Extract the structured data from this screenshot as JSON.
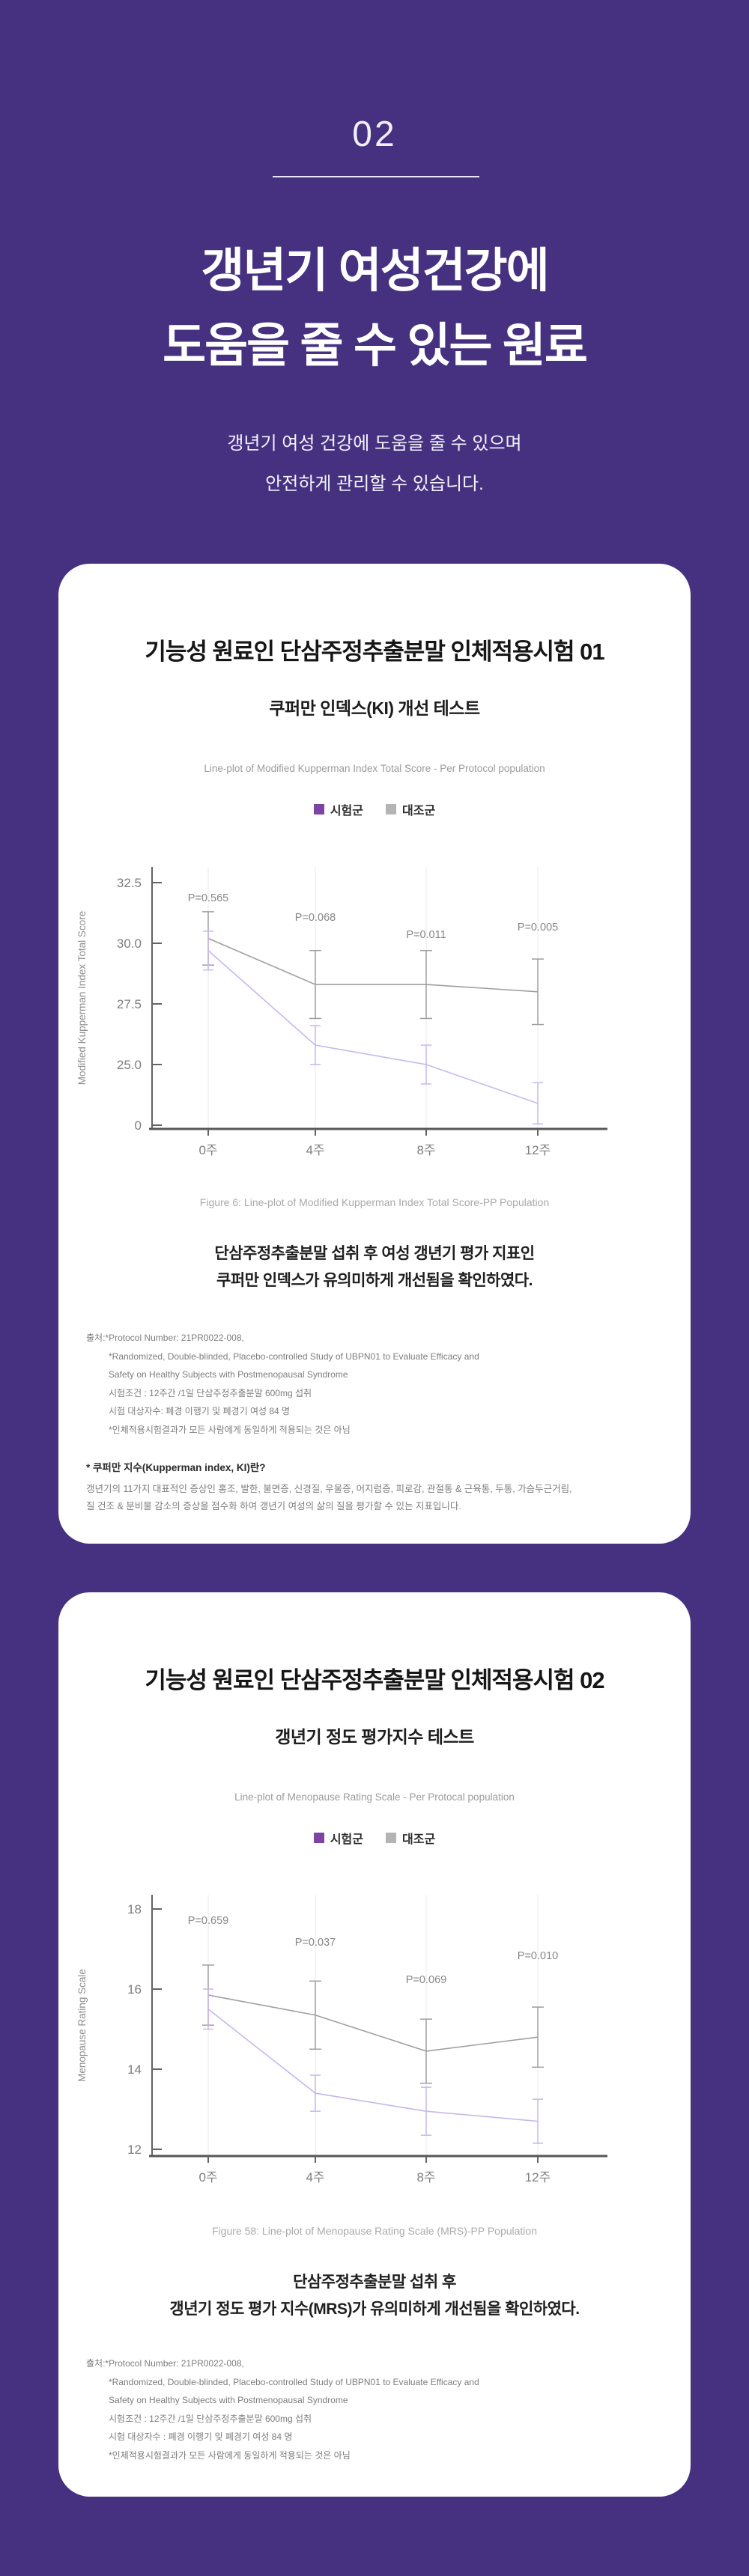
{
  "page": {
    "section_number": "02",
    "title_line1": "갱년기 여성건강에",
    "title_line2": "도움을 줄 수 있는 원료",
    "subtitle_line1": "갱년기 여성 건강에 도움을 줄 수 있으며",
    "subtitle_line2": "안전하게 관리할 수 있습니다.",
    "bg_color": "#463181"
  },
  "cards": [
    {
      "title": "기능성 원료인 단삼주정추출분말 인체적용시험 01",
      "subtitle": "쿠퍼만 인덱스(KI) 개선 테스트",
      "figure_caption": "Figure 6: Line-plot of Modified Kupperman Index Total Score-PP Population",
      "result_line1": "단삼주정추출분말 섭취 후 여성 갱년기 평가 지표인",
      "result_line2": "쿠퍼만 인덱스가 유의미하게 개선됨을 확인하였다.",
      "footnotes": [
        "출처:*Protocol Number: 21PR0022-008,",
        "*Randomized, Double-blinded, Placebo-controlled Study of UBPN01 to Evaluate Efficacy and",
        "Safety on Healthy Subjects with Postmenopausal Syndrome",
        "시험조건 : 12주간 /1일 단삼주정추출분말 600mg 섭취",
        "시험 대상자수: 폐경 이행기 및 폐경기 여성 84 명",
        "*인체적용시험결과가 모든 사람에게 동일하게 적용되는 것은 아님"
      ],
      "note_title": "* 쿠퍼만 지수(Kupperman index, KI)란?",
      "note_line1": "갱년기의 11가지 대표적인 증상인 홍조, 발한, 불면증, 신경질, 우울증, 어지럼증, 피로감, 관절통 & 근육통, 두통, 가슴두근거림,",
      "note_line2": "질 건조 & 분비물 감소의 증상을 점수화 하여 갱년기 여성의 삶의 질을 평가할 수 있는 지표입니다."
    },
    {
      "title": "기능성 원료인 단삼주정추출분말 인체적용시험 02",
      "subtitle": "갱년기 정도 평가지수 테스트",
      "figure_caption": "Figure 58: Line-plot of Menopause Rating Scale (MRS)-PP Population",
      "result_line1": "단삼주정추출분말 섭취 후",
      "result_line2": "갱년기 정도 평가 지수(MRS)가 유의미하게 개선됨을 확인하였다.",
      "footnotes": [
        "출처:*Protocol Number: 21PR0022-008,",
        "*Randomized, Double-blinded, Placebo-controlled Study of UBPN01 to Evaluate Efficacy and",
        "Safety on Healthy Subjects with Postmenopausal Syndrome",
        "시험조건 : 12주간 /1일 단삼주정추출분말 600mg 섭취",
        "시험 대상자수 : 폐경 이행기 및 폐경기 여성 84 명",
        "*인체적용시험결과가 모든 사람에게 동일하게 적용되는 것은 아님"
      ]
    }
  ],
  "chart_data": [
    {
      "type": "line",
      "title": "Line-plot of Modified Kupperman Index Total Score - Per Protocol population",
      "ylabel": "Modified Kupperman Index Total Score",
      "categories": [
        "0주",
        "4주",
        "8주",
        "12주"
      ],
      "y_ticks": [
        {
          "label": "32.5",
          "value": 32.5
        },
        {
          "label": "30.0",
          "value": 30.0
        },
        {
          "label": "27.5",
          "value": 27.5
        },
        {
          "label": "25.0",
          "value": 25.0
        },
        {
          "label": "0",
          "value": null
        }
      ],
      "axis_break": true,
      "ylim_visible": [
        25.0,
        32.5
      ],
      "grid": "vertical-only",
      "legend_position": "top-center",
      "series": [
        {
          "name": "시험군",
          "color": "#c8b6ee",
          "swatch": "#7e44a3",
          "values": [
            29.7,
            25.8,
            25.0,
            23.4
          ],
          "err": [
            0.8,
            0.8,
            0.8,
            0.85
          ]
        },
        {
          "name": "대조군",
          "color": "#9f9f9f",
          "swatch": "#b4b4b4",
          "values": [
            30.2,
            28.3,
            28.3,
            28.0
          ],
          "err": [
            1.1,
            1.4,
            1.4,
            1.35
          ]
        }
      ],
      "p_values": [
        "P=0.565",
        "P=0.068",
        "P=0.011",
        "P=0.005"
      ]
    },
    {
      "type": "line",
      "title": "Line-plot of Menopause Rating Scale - Per Protocal population",
      "ylabel": "Menopause Rating Scale",
      "categories": [
        "0주",
        "4주",
        "8주",
        "12주"
      ],
      "y_ticks": [
        {
          "label": "18",
          "value": 18
        },
        {
          "label": "16",
          "value": 16
        },
        {
          "label": "14",
          "value": 14
        },
        {
          "label": "12",
          "value": 12
        }
      ],
      "axis_break": false,
      "ylim_visible": [
        12,
        18
      ],
      "grid": "vertical-only",
      "legend_position": "top-center",
      "series": [
        {
          "name": "시험군",
          "color": "#c8b6ee",
          "swatch": "#7e44a3",
          "values": [
            15.5,
            13.4,
            12.95,
            12.7
          ],
          "err": [
            0.5,
            0.45,
            0.6,
            0.55
          ]
        },
        {
          "name": "대조군",
          "color": "#9f9f9f",
          "swatch": "#b4b4b4",
          "values": [
            15.85,
            15.35,
            14.45,
            14.8
          ],
          "err": [
            0.75,
            0.85,
            0.8,
            0.75
          ]
        }
      ],
      "p_values": [
        "P=0.659",
        "P=0.037",
        "P=0.069",
        "P=0.010"
      ]
    }
  ]
}
